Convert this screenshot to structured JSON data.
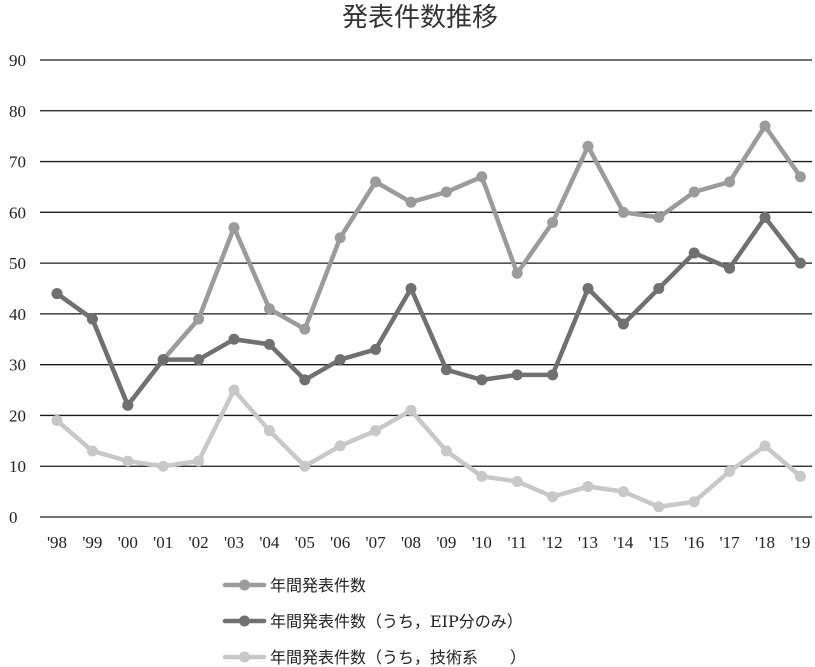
{
  "chart_data": {
    "type": "line",
    "title": "発表件数推移",
    "categories": [
      "'98",
      "'99",
      "'00",
      "'01",
      "'02",
      "'03",
      "'04",
      "'05",
      "'06",
      "'07",
      "'08",
      "'09",
      "'10",
      "'11",
      "'12",
      "'13",
      "'14",
      "'15",
      "'16",
      "'17",
      "'18",
      "'19"
    ],
    "ylim": [
      0,
      90
    ],
    "yticks": [
      0,
      10,
      20,
      30,
      40,
      50,
      60,
      70,
      80,
      90
    ],
    "grid": true,
    "legend_position": "bottom",
    "series": [
      {
        "name": "年間発表件数",
        "color": "#9b9b9b",
        "values": [
          44,
          39,
          22,
          31,
          39,
          57,
          41,
          37,
          55,
          66,
          62,
          64,
          67,
          48,
          58,
          73,
          60,
          59,
          64,
          66,
          77,
          67
        ]
      },
      {
        "name": "年間発表件数（うち，EIP分のみ）",
        "color": "#707070",
        "values": [
          44,
          39,
          22,
          31,
          31,
          35,
          34,
          27,
          31,
          33,
          45,
          29,
          27,
          28,
          28,
          45,
          38,
          45,
          52,
          49,
          59,
          50
        ]
      },
      {
        "name": "年間発表件数（うち，技術系　　）",
        "color": "#c8c8c8",
        "values": [
          19,
          13,
          11,
          10,
          11,
          25,
          17,
          10,
          14,
          17,
          21,
          13,
          8,
          7,
          4,
          6,
          5,
          2,
          3,
          9,
          14,
          8
        ]
      }
    ]
  }
}
